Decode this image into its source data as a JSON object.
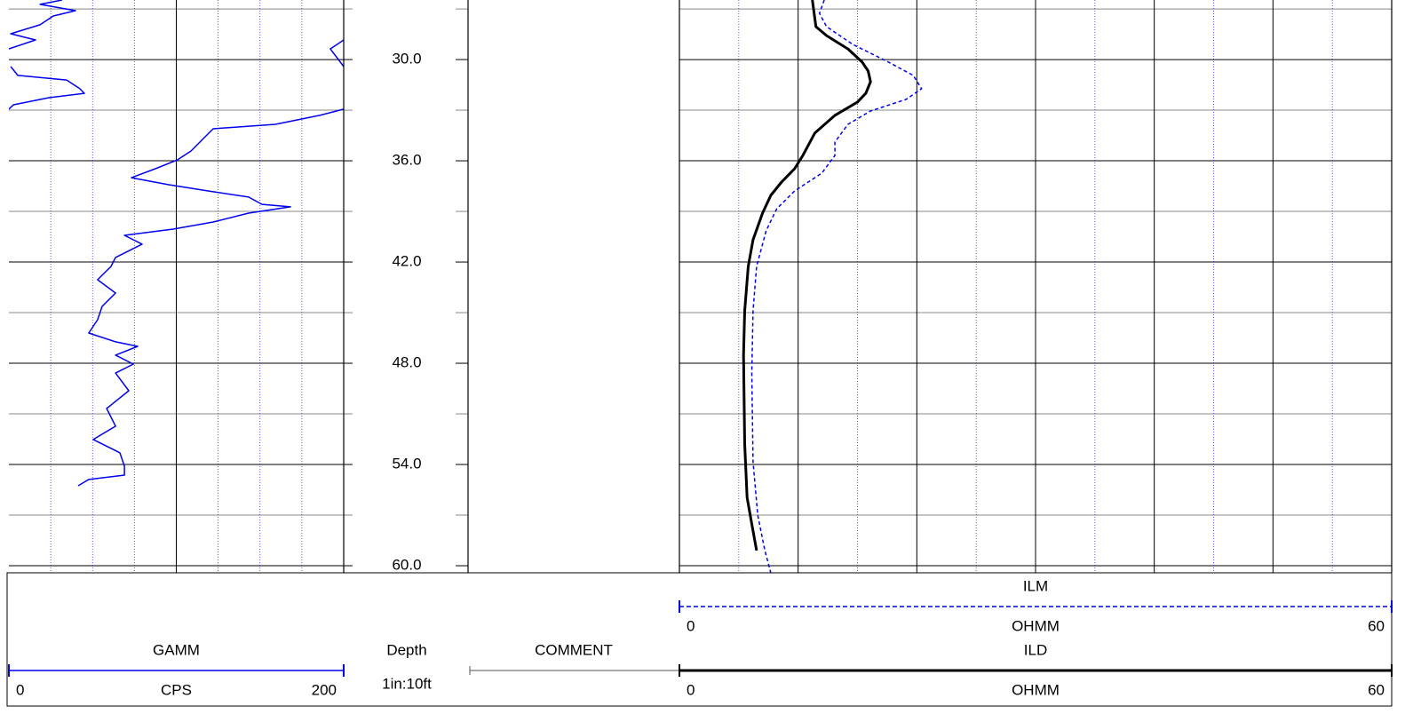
{
  "chart_data": {
    "type": "well-log",
    "depth_lim": [
      26.47,
      60.42
    ],
    "depth_ticks": [
      {
        "value": 30,
        "label": "30.0"
      },
      {
        "value": 36,
        "label": "36.0"
      },
      {
        "value": 42,
        "label": "42.0"
      },
      {
        "value": 48,
        "label": "48.0"
      },
      {
        "value": 54,
        "label": "54.0"
      },
      {
        "value": 60,
        "label": "60.0"
      }
    ],
    "depth_minor_ticks": [
      27,
      33,
      39,
      45,
      51,
      57
    ],
    "depth_title": "Depth",
    "depth_scale": "1in:10ft",
    "comment_title": "COMMENT",
    "tracks": [
      {
        "xlim": [
          0,
          200
        ],
        "xticks_major": [
          100
        ],
        "xticks_minor": [
          25,
          50,
          75,
          125,
          150,
          175
        ],
        "curves": [
          {
            "name": "GAMM",
            "unit": "CPS",
            "color": "#0000ee",
            "dashed": false,
            "width": 1.5,
            "depth": [
              26.47,
              26.73,
              27.1,
              27.42,
              27.94,
              28.47,
              28.84,
              29.37,
              null,
              28.84,
              29.37,
              29.89,
              30.42,
              null,
              30.42,
              30.94,
              31.21,
              31.73,
              32.0,
              32.26,
              32.68,
              32.94,
              null,
              32.94,
              33.31,
              33.84,
              34.1,
              34.63,
              35.42,
              35.94,
              36.47,
              37.0,
              37.42,
              37.79,
              38.15,
              38.58,
              38.73,
              39.1,
              39.63,
              40.05,
              40.42,
              40.94,
              41.73,
              42.26,
              43.05,
              43.84,
              44.63,
              45.42,
              46.21,
              46.73,
              47.0,
              47.52,
              48.05,
              48.58,
              49.63,
              50.68,
              51.73,
              52.52,
              53.31,
              54.1,
              54.63,
              54.89,
              55.26
            ],
            "values": [
              31.8,
              18.6,
              39.8,
              26.5,
              18.6,
              1.1,
              15.9,
              0,
              null,
              200,
              192,
              196,
              200,
              null,
              1.1,
              5.3,
              34.5,
              42.4,
              45.1,
              23.9,
              2.7,
              0,
              null,
              200,
              185.7,
              159.2,
              122,
              116.7,
              108.8,
              100.8,
              87.5,
              73.2,
              95.5,
              119.4,
              143.2,
              151.2,
              168.2,
              143.2,
              122,
              98.1,
              69,
              79.6,
              63.7,
              61,
              53,
              63.7,
              55.7,
              53,
              47.7,
              63.7,
              76.9,
              63.7,
              74.3,
              63.7,
              71.6,
              58.4,
              63.7,
              50.4,
              66.3,
              69,
              69,
              47.7,
              41.4
            ]
          }
        ]
      },
      {
        "xlim": [
          0,
          60
        ],
        "xticks_major": [
          10,
          20,
          30,
          40,
          50
        ],
        "xticks_minor": [
          5,
          15,
          25,
          35,
          45,
          55
        ],
        "curves": [
          {
            "name": "ILM",
            "unit": "OHMM",
            "color": "#0000ee",
            "dashed": true,
            "width": 1.5,
            "depth": [
              26.47,
              27.26,
              28.05,
              29.1,
              30.15,
              30.94,
              31.73,
              32.36,
              33.05,
              33.84,
              34.89,
              35.68,
              36.73,
              37.79,
              38.84,
              40.15,
              42.26,
              44.89,
              48.58,
              53.84,
              57.0,
              59.1,
              60.42
            ],
            "values": [
              12.2,
              11.8,
              12.4,
              14.6,
              17.6,
              19.7,
              20.4,
              19.1,
              16.1,
              14.2,
              13.1,
              13.1,
              12.0,
              9.7,
              8.2,
              7.3,
              6.5,
              6.2,
              6.1,
              6.2,
              6.6,
              7.2,
              7.7
            ]
          },
          {
            "name": "ILD",
            "unit": "OHMM",
            "color": "#000000",
            "dashed": false,
            "width": 3,
            "depth": [
              26.47,
              28.05,
              28.58,
              29.37,
              30.15,
              30.68,
              31.31,
              32.0,
              32.52,
              33.31,
              34.36,
              35.68,
              36.47,
              37.26,
              38.05,
              39.1,
              40.68,
              42.26,
              44.89,
              47.52,
              52.79,
              55.95,
              57.53,
              59.1
            ],
            "values": [
              11.2,
              11.5,
              12.4,
              14.2,
              15.4,
              15.9,
              16.1,
              15.7,
              15.0,
              13.1,
              11.4,
              10.4,
              9.7,
              8.6,
              7.7,
              7.0,
              6.2,
              5.8,
              5.5,
              5.4,
              5.5,
              5.7,
              6.1,
              6.5
            ]
          }
        ]
      }
    ]
  }
}
